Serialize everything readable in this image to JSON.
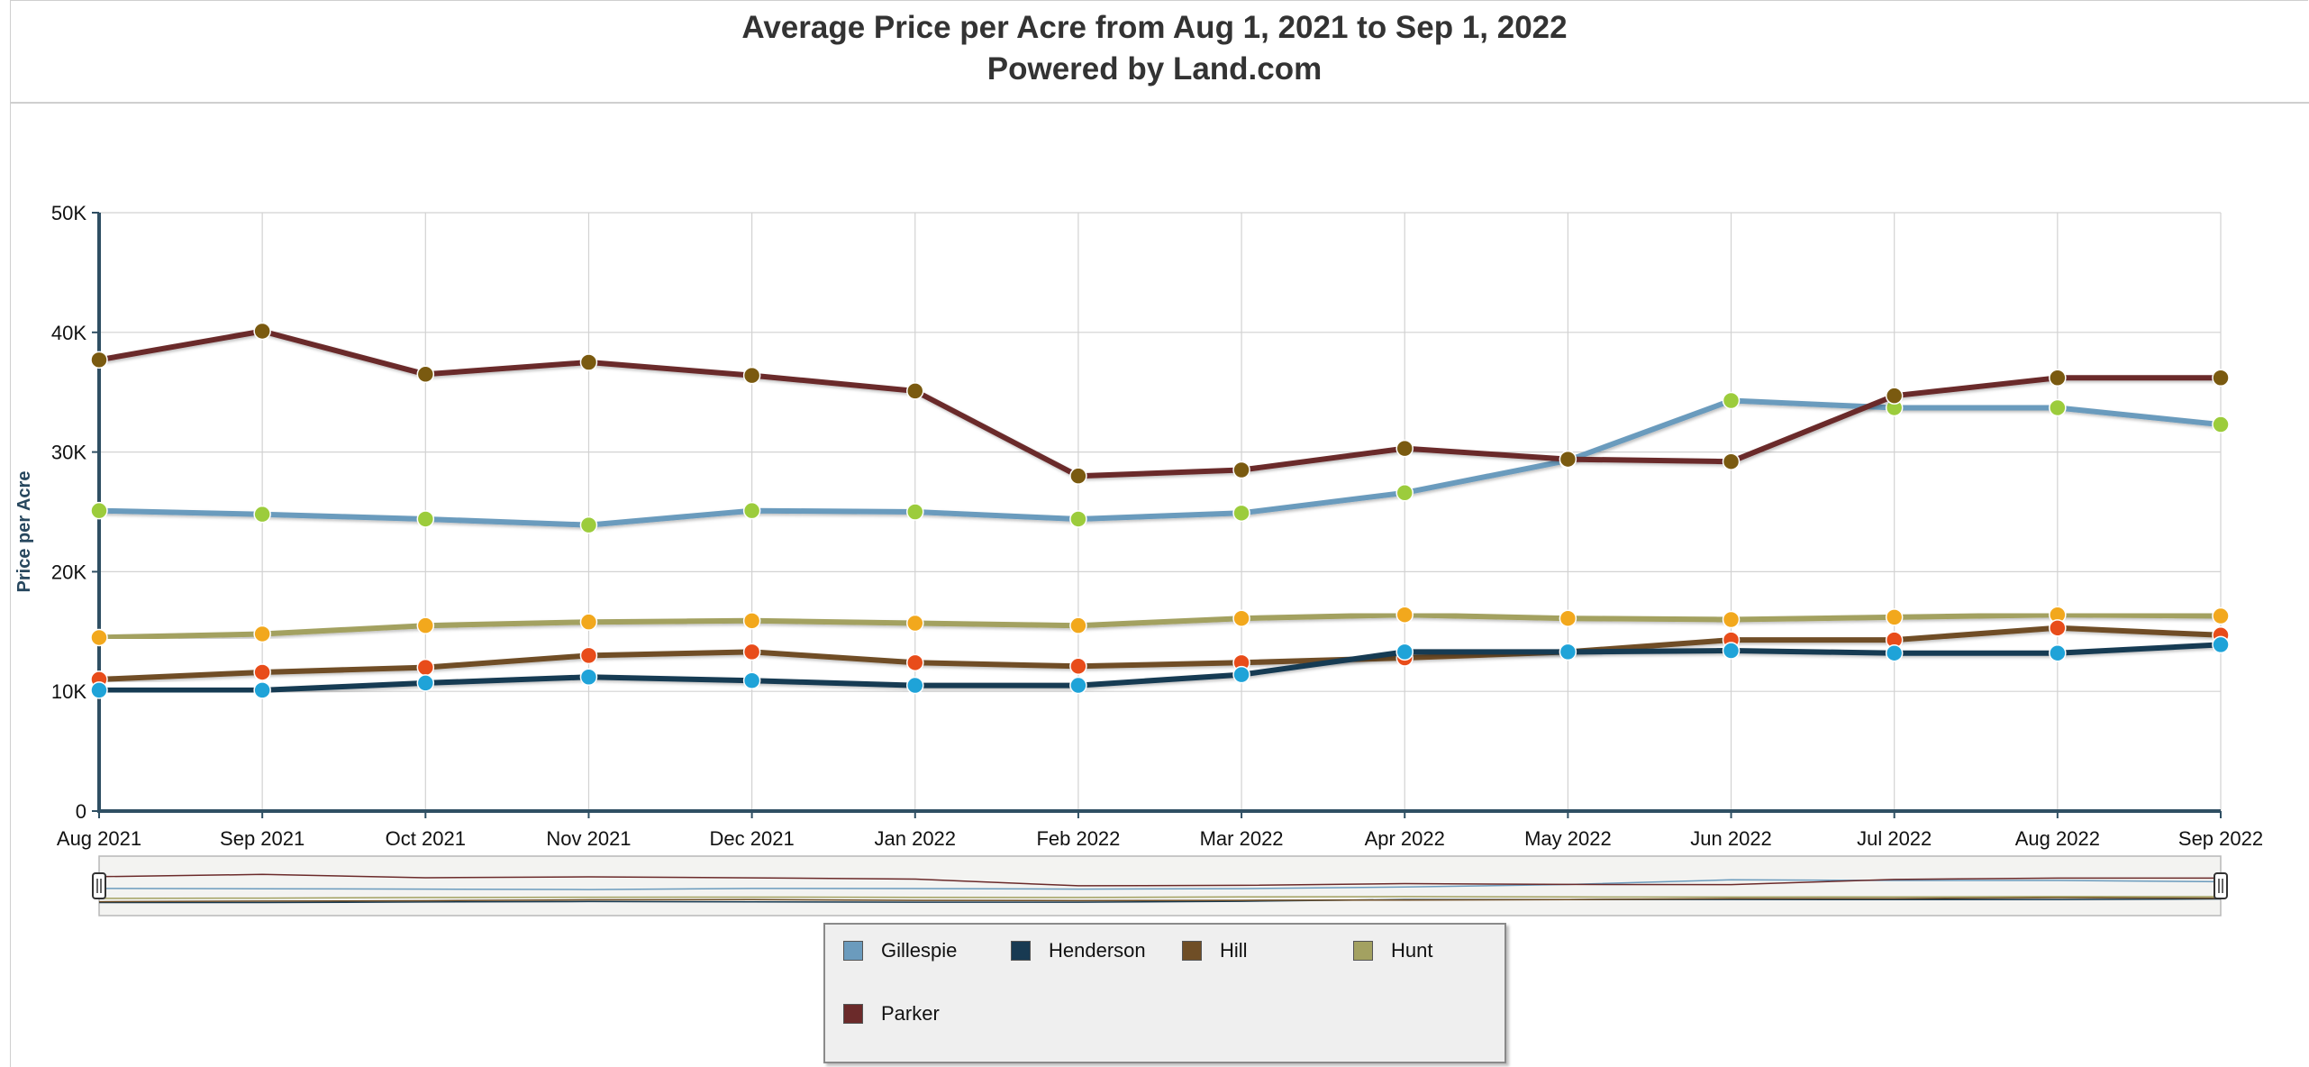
{
  "title": {
    "line1": "Average Price per Acre from Aug 1, 2021 to Sep 1, 2022",
    "line2": "Powered by Land.com"
  },
  "chart_data": {
    "type": "line",
    "ylabel": "Price per Acre",
    "ylim": [
      0,
      50000
    ],
    "yticks": [
      {
        "value": 0,
        "label": "0"
      },
      {
        "value": 10000,
        "label": "10K"
      },
      {
        "value": 20000,
        "label": "20K"
      },
      {
        "value": 30000,
        "label": "30K"
      },
      {
        "value": 40000,
        "label": "40K"
      },
      {
        "value": 50000,
        "label": "50K"
      }
    ],
    "categories": [
      "Aug 2021",
      "Sep 2021",
      "Oct 2021",
      "Nov 2021",
      "Dec 2021",
      "Jan 2022",
      "Feb 2022",
      "Mar 2022",
      "Apr 2022",
      "May 2022",
      "Jun 2022",
      "Jul 2022",
      "Aug 2022",
      "Sep 2022"
    ],
    "grid": true,
    "legend_position": "bottom-center",
    "series": [
      {
        "name": "Gillespie",
        "color": "#6b9bbd",
        "marker": "#9ccc3c",
        "values": [
          25100,
          24800,
          24400,
          23900,
          25100,
          25000,
          24400,
          24900,
          26600,
          29300,
          34300,
          33700,
          33700,
          32300
        ]
      },
      {
        "name": "Henderson",
        "color": "#183a52",
        "marker": "#1fa3d8",
        "values": [
          10100,
          10100,
          10700,
          11200,
          10900,
          10500,
          10500,
          11400,
          13300,
          13300,
          13400,
          13200,
          13200,
          13900
        ]
      },
      {
        "name": "Hill",
        "color": "#6f4e26",
        "marker": "#e84c1a",
        "values": [
          11000,
          11600,
          12000,
          13000,
          13300,
          12400,
          12100,
          12400,
          12800,
          13300,
          14300,
          14300,
          15300,
          14700
        ]
      },
      {
        "name": "Hunt",
        "color": "#a3a161",
        "marker": "#f2a81d",
        "values": [
          14500,
          14800,
          15500,
          15800,
          15900,
          15700,
          15500,
          16100,
          16400,
          16100,
          16000,
          16200,
          16400,
          16300
        ]
      },
      {
        "name": "Parker",
        "color": "#6b2a2a",
        "marker": "#7a5a10",
        "values": [
          37700,
          40100,
          36500,
          37500,
          36400,
          35100,
          28000,
          28500,
          30300,
          29400,
          29200,
          34700,
          36200,
          36200
        ]
      }
    ]
  }
}
